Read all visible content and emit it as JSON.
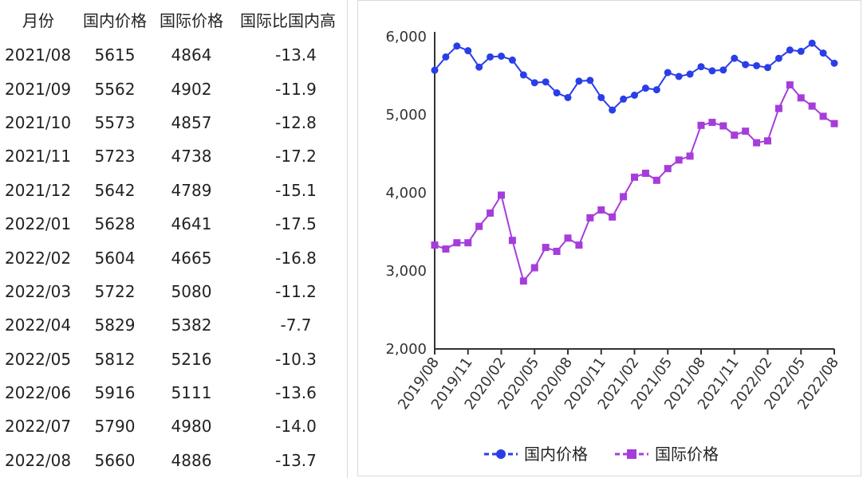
{
  "table": {
    "headers": [
      "月份",
      "国内价格",
      "国际价格",
      "国际比国内高"
    ],
    "rows": [
      [
        "2021/08",
        "5615",
        "4864",
        "-13.4"
      ],
      [
        "2021/09",
        "5562",
        "4902",
        "-11.9"
      ],
      [
        "2021/10",
        "5573",
        "4857",
        "-12.8"
      ],
      [
        "2021/11",
        "5723",
        "4738",
        "-17.2"
      ],
      [
        "2021/12",
        "5642",
        "4789",
        "-15.1"
      ],
      [
        "2022/01",
        "5628",
        "4641",
        "-17.5"
      ],
      [
        "2022/02",
        "5604",
        "4665",
        "-16.8"
      ],
      [
        "2022/03",
        "5722",
        "5080",
        "-11.2"
      ],
      [
        "2022/04",
        "5829",
        "5382",
        "-7.7"
      ],
      [
        "2022/05",
        "5812",
        "5216",
        "-10.3"
      ],
      [
        "2022/06",
        "5916",
        "5111",
        "-13.6"
      ],
      [
        "2022/07",
        "5790",
        "4980",
        "-14.0"
      ],
      [
        "2022/08",
        "5660",
        "4886",
        "-13.7"
      ]
    ]
  },
  "chart_data": {
    "type": "line",
    "x": [
      "2019/08",
      "2019/09",
      "2019/10",
      "2019/11",
      "2019/12",
      "2020/01",
      "2020/02",
      "2020/03",
      "2020/04",
      "2020/05",
      "2020/06",
      "2020/07",
      "2020/08",
      "2020/09",
      "2020/10",
      "2020/11",
      "2020/12",
      "2021/01",
      "2021/02",
      "2021/03",
      "2021/04",
      "2021/05",
      "2021/06",
      "2021/07",
      "2021/08",
      "2021/09",
      "2021/10",
      "2021/11",
      "2021/12",
      "2022/01",
      "2022/02",
      "2022/03",
      "2022/04",
      "2022/05",
      "2022/06",
      "2022/07",
      "2022/08"
    ],
    "x_tick_labels": [
      "2019/08",
      "2019/11",
      "2020/02",
      "2020/05",
      "2020/08",
      "2020/11",
      "2021/02",
      "2021/05",
      "2021/08",
      "2021/11",
      "2022/02",
      "2022/05",
      "2022/08"
    ],
    "ylim": [
      2000,
      6000
    ],
    "y_ticks": [
      2000,
      3000,
      4000,
      5000,
      6000
    ],
    "y_tick_labels": [
      "2,000",
      "3,000",
      "4,000",
      "5,000",
      "6,000"
    ],
    "grid": false,
    "legend_position": "bottom",
    "series": [
      {
        "name": "国内价格",
        "color": "#2a3ee8",
        "marker": "circle",
        "values": [
          5570,
          5740,
          5880,
          5820,
          5610,
          5740,
          5750,
          5700,
          5510,
          5410,
          5420,
          5280,
          5220,
          5430,
          5440,
          5220,
          5060,
          5200,
          5250,
          5340,
          5320,
          5540,
          5490,
          5520,
          5615,
          5562,
          5573,
          5723,
          5642,
          5628,
          5604,
          5722,
          5829,
          5812,
          5916,
          5790,
          5660
        ]
      },
      {
        "name": "国际价格",
        "color": "#a63ddb",
        "marker": "square",
        "values": [
          3330,
          3280,
          3360,
          3360,
          3570,
          3740,
          3970,
          3390,
          2870,
          3040,
          3300,
          3250,
          3420,
          3330,
          3680,
          3780,
          3690,
          3950,
          4200,
          4250,
          4160,
          4310,
          4420,
          4470,
          4864,
          4902,
          4857,
          4738,
          4789,
          4641,
          4665,
          5080,
          5382,
          5216,
          5111,
          4980,
          4886
        ]
      }
    ]
  }
}
